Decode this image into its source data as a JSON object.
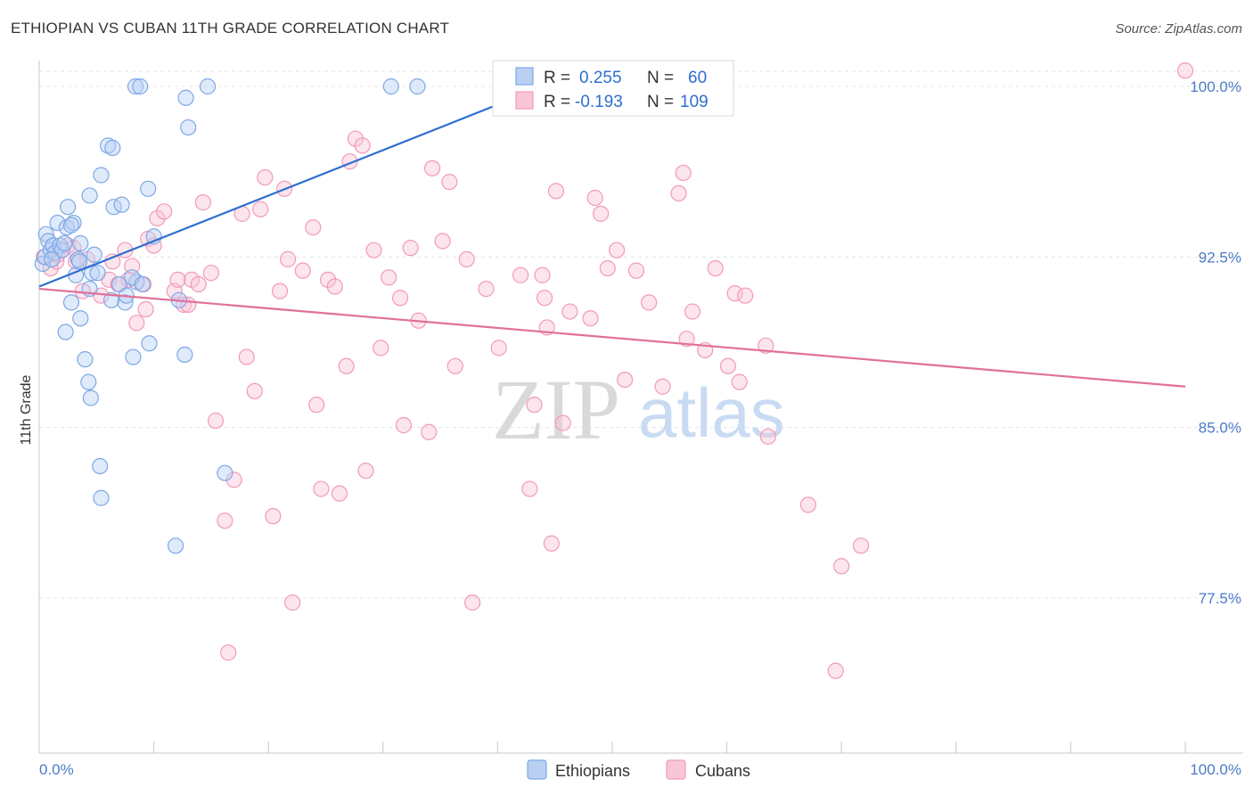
{
  "chart_data": {
    "type": "scatter",
    "title": "ETHIOPIAN VS CUBAN 11TH GRADE CORRELATION CHART",
    "source": "Source: ZipAtlas.com",
    "xlabel": "",
    "ylabel": "11th Grade",
    "xlim": [
      0,
      100
    ],
    "ylim": [
      71.0,
      101.5
    ],
    "x_tick_labels": [
      "0.0%",
      "100.0%"
    ],
    "y_ticks": [
      77.5,
      85.0,
      92.5,
      100.0
    ],
    "y_tick_labels": [
      "77.5%",
      "85.0%",
      "92.5%",
      "100.0%"
    ],
    "grid": true,
    "watermark": {
      "zip": "ZIP",
      "atlas": "atlas"
    },
    "legend": {
      "position": "top-center",
      "entries": [
        {
          "r_label": "R =",
          "r_value": "0.255",
          "n_label": "N =",
          "n_value": "60"
        },
        {
          "r_label": "R =",
          "r_value": "-0.193",
          "n_label": "N =",
          "n_value": "109"
        }
      ]
    },
    "series": [
      {
        "name": "Ethiopians",
        "color": "#7ea8e6",
        "fill": "#b9d0f3",
        "line_color": "#2f6fd0",
        "trend": {
          "x0": 0.0,
          "y0": 91.2,
          "x1": 44.0,
          "y1": 100.0
        },
        "points": [
          [
            0.3,
            92.2
          ],
          [
            0.5,
            92.5
          ],
          [
            0.6,
            93.5
          ],
          [
            0.8,
            93.2
          ],
          [
            1.0,
            92.8
          ],
          [
            1.2,
            93.0
          ],
          [
            1.4,
            92.7
          ],
          [
            1.6,
            94.0
          ],
          [
            1.8,
            93.0
          ],
          [
            2.0,
            92.8
          ],
          [
            2.2,
            93.1
          ],
          [
            2.4,
            93.8
          ],
          [
            2.5,
            94.7
          ],
          [
            2.8,
            90.5
          ],
          [
            3.0,
            94.0
          ],
          [
            3.2,
            91.7
          ],
          [
            3.4,
            92.4
          ],
          [
            3.6,
            93.1
          ],
          [
            4.0,
            88.0
          ],
          [
            4.3,
            87.0
          ],
          [
            4.4,
            91.1
          ],
          [
            4.5,
            86.3
          ],
          [
            4.8,
            92.6
          ],
          [
            4.6,
            91.8
          ],
          [
            5.4,
            96.1
          ],
          [
            6.0,
            97.4
          ],
          [
            6.5,
            94.7
          ],
          [
            7.2,
            94.8
          ],
          [
            7.5,
            90.5
          ],
          [
            8.2,
            88.1
          ],
          [
            8.5,
            91.4
          ],
          [
            9.5,
            95.5
          ],
          [
            9.6,
            88.7
          ],
          [
            10.0,
            93.4
          ],
          [
            12.7,
            88.2
          ],
          [
            13.0,
            98.2
          ],
          [
            12.8,
            99.5
          ],
          [
            8.4,
            100.0
          ],
          [
            8.8,
            100.0
          ],
          [
            14.7,
            100.0
          ],
          [
            30.7,
            100.0
          ],
          [
            33.0,
            100.0
          ],
          [
            5.3,
            83.3
          ],
          [
            5.4,
            81.9
          ],
          [
            11.9,
            79.8
          ],
          [
            16.2,
            83.0
          ],
          [
            2.3,
            89.2
          ],
          [
            3.6,
            89.8
          ],
          [
            6.3,
            90.6
          ],
          [
            7.0,
            91.3
          ],
          [
            7.6,
            90.8
          ],
          [
            8.1,
            91.6
          ],
          [
            9.0,
            91.3
          ],
          [
            12.2,
            90.6
          ],
          [
            1.1,
            92.4
          ],
          [
            3.5,
            92.3
          ],
          [
            5.1,
            91.8
          ],
          [
            4.4,
            95.2
          ],
          [
            6.4,
            97.3
          ],
          [
            2.8,
            93.9
          ]
        ]
      },
      {
        "name": "Cubans",
        "color": "#f29ab8",
        "fill": "#f8c6d7",
        "line_color": "#e0709a",
        "trend": {
          "x0": 0.0,
          "y0": 91.1,
          "x1": 100.0,
          "y1": 86.8
        },
        "points": [
          [
            0.4,
            92.5
          ],
          [
            1.0,
            92.0
          ],
          [
            1.5,
            92.3
          ],
          [
            2.5,
            93.0
          ],
          [
            3.2,
            92.3
          ],
          [
            3.8,
            91.0
          ],
          [
            4.2,
            92.4
          ],
          [
            5.4,
            90.8
          ],
          [
            6.1,
            91.5
          ],
          [
            6.4,
            92.3
          ],
          [
            7.5,
            92.8
          ],
          [
            7.8,
            91.5
          ],
          [
            8.1,
            92.1
          ],
          [
            8.5,
            89.6
          ],
          [
            9.1,
            91.3
          ],
          [
            9.3,
            90.2
          ],
          [
            9.5,
            93.3
          ],
          [
            10.0,
            93.0
          ],
          [
            10.3,
            94.2
          ],
          [
            10.9,
            94.5
          ],
          [
            11.8,
            91.0
          ],
          [
            12.1,
            91.5
          ],
          [
            12.6,
            90.4
          ],
          [
            13.0,
            90.4
          ],
          [
            13.3,
            91.5
          ],
          [
            13.9,
            91.3
          ],
          [
            14.3,
            94.9
          ],
          [
            15.0,
            91.8
          ],
          [
            15.4,
            85.3
          ],
          [
            16.2,
            80.9
          ],
          [
            16.5,
            75.1
          ],
          [
            17.0,
            82.7
          ],
          [
            17.7,
            94.4
          ],
          [
            18.1,
            88.1
          ],
          [
            18.8,
            86.6
          ],
          [
            19.3,
            94.6
          ],
          [
            19.7,
            96.0
          ],
          [
            20.4,
            81.1
          ],
          [
            21.0,
            91.0
          ],
          [
            21.4,
            95.5
          ],
          [
            21.7,
            92.4
          ],
          [
            22.1,
            77.3
          ],
          [
            23.0,
            91.9
          ],
          [
            23.9,
            93.8
          ],
          [
            24.2,
            86.0
          ],
          [
            24.6,
            82.3
          ],
          [
            25.2,
            91.5
          ],
          [
            25.8,
            91.2
          ],
          [
            26.2,
            82.1
          ],
          [
            26.8,
            87.7
          ],
          [
            27.1,
            96.7
          ],
          [
            27.6,
            97.7
          ],
          [
            28.2,
            97.4
          ],
          [
            28.5,
            83.1
          ],
          [
            29.2,
            92.8
          ],
          [
            29.8,
            88.5
          ],
          [
            30.5,
            91.6
          ],
          [
            31.5,
            90.7
          ],
          [
            31.8,
            85.1
          ],
          [
            32.4,
            92.9
          ],
          [
            33.1,
            89.7
          ],
          [
            34.0,
            84.8
          ],
          [
            34.3,
            96.4
          ],
          [
            35.2,
            93.2
          ],
          [
            35.8,
            95.8
          ],
          [
            36.3,
            87.7
          ],
          [
            37.3,
            92.4
          ],
          [
            37.8,
            77.3
          ],
          [
            39.0,
            91.1
          ],
          [
            40.1,
            88.5
          ],
          [
            42.0,
            91.7
          ],
          [
            42.8,
            82.3
          ],
          [
            43.2,
            86.0
          ],
          [
            43.9,
            91.7
          ],
          [
            44.1,
            90.7
          ],
          [
            44.3,
            89.4
          ],
          [
            44.7,
            79.9
          ],
          [
            45.1,
            95.4
          ],
          [
            45.7,
            85.2
          ],
          [
            46.3,
            90.1
          ],
          [
            48.1,
            89.8
          ],
          [
            48.5,
            95.1
          ],
          [
            49.0,
            94.4
          ],
          [
            49.6,
            92.0
          ],
          [
            50.4,
            92.8
          ],
          [
            51.1,
            87.1
          ],
          [
            52.1,
            91.9
          ],
          [
            53.2,
            90.5
          ],
          [
            54.4,
            86.8
          ],
          [
            55.8,
            95.3
          ],
          [
            56.2,
            96.2
          ],
          [
            56.5,
            88.9
          ],
          [
            57.0,
            90.1
          ],
          [
            58.1,
            88.4
          ],
          [
            59.0,
            92.0
          ],
          [
            60.1,
            87.7
          ],
          [
            60.7,
            90.9
          ],
          [
            61.1,
            87.0
          ],
          [
            61.6,
            90.8
          ],
          [
            63.4,
            88.6
          ],
          [
            63.6,
            84.6
          ],
          [
            67.1,
            81.6
          ],
          [
            69.5,
            74.3
          ],
          [
            70.0,
            78.9
          ],
          [
            71.7,
            79.8
          ],
          [
            100.0,
            100.7
          ],
          [
            6.9,
            91.3
          ],
          [
            3.0,
            92.9
          ],
          [
            1.6,
            92.6
          ]
        ]
      }
    ]
  }
}
